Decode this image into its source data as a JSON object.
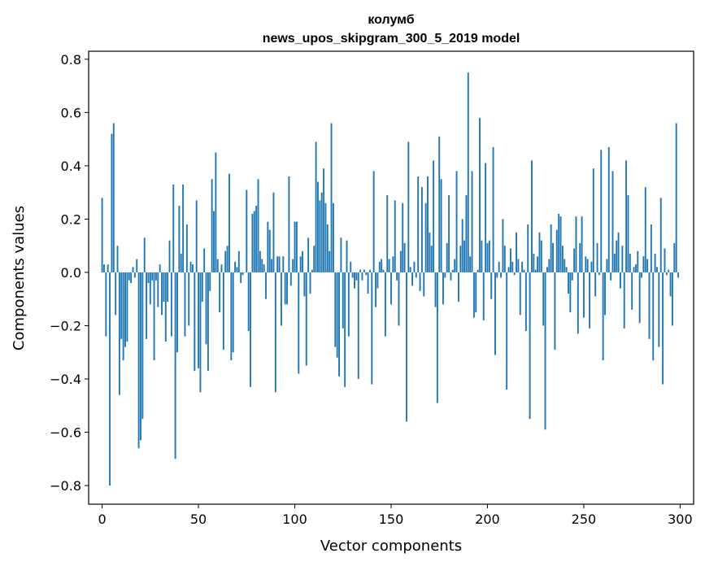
{
  "chart_data": {
    "type": "bar",
    "title_line1": "колумб",
    "title_line2": "news_upos_skipgram_300_5_2019 model",
    "xlabel": "Vector components",
    "ylabel": "Components values",
    "xlim": [
      -7,
      307
    ],
    "ylim": [
      -0.87,
      0.83
    ],
    "xticks": [
      0,
      50,
      100,
      150,
      200,
      250,
      300
    ],
    "xtick_labels": [
      "0",
      "50",
      "100",
      "150",
      "200",
      "250",
      "300"
    ],
    "yticks": [
      -0.8,
      -0.6,
      -0.4,
      -0.2,
      0.0,
      0.2,
      0.4,
      0.6,
      0.8
    ],
    "ytick_labels": [
      "−0.8",
      "−0.6",
      "−0.4",
      "−0.2",
      "0.0",
      "0.2",
      "0.4",
      "0.6",
      "0.8"
    ],
    "bar_color": "#1f77b4",
    "values": [
      0.28,
      0.03,
      -0.24,
      0.03,
      -0.8,
      0.52,
      0.56,
      -0.16,
      0.1,
      -0.46,
      -0.25,
      -0.33,
      -0.28,
      -0.26,
      -0.03,
      -0.04,
      0.02,
      -0.02,
      0.05,
      -0.66,
      -0.63,
      -0.55,
      0.13,
      -0.25,
      -0.04,
      -0.12,
      -0.03,
      -0.33,
      -0.03,
      -0.13,
      0.03,
      -0.16,
      -0.11,
      -0.26,
      -0.11,
      0.12,
      -0.24,
      0.33,
      -0.7,
      -0.3,
      0.25,
      0.07,
      0.33,
      -0.24,
      0.18,
      -0.2,
      0.04,
      0.03,
      -0.37,
      0.27,
      -0.36,
      -0.45,
      -0.11,
      0.09,
      -0.27,
      -0.37,
      -0.07,
      0.35,
      0.23,
      0.45,
      0.05,
      -0.15,
      0.03,
      -0.29,
      0.08,
      0.1,
      0.37,
      -0.33,
      -0.3,
      0.04,
      0.02,
      0.08,
      -0.04,
      -0.01,
      0.0,
      0.31,
      -0.22,
      -0.43,
      0.22,
      0.23,
      0.25,
      0.35,
      0.08,
      0.05,
      0.03,
      -0.1,
      0.19,
      0.16,
      0.05,
      0.3,
      -0.45,
      0.06,
      0.06,
      -0.2,
      0.06,
      -0.12,
      -0.12,
      0.36,
      -0.05,
      0.05,
      0.19,
      0.19,
      -0.38,
      0.06,
      0.08,
      -0.09,
      -0.35,
      0.13,
      -0.08,
      0.01,
      0.1,
      0.49,
      0.34,
      0.27,
      0.3,
      0.39,
      0.26,
      0.18,
      0.08,
      0.56,
      0.26,
      -0.28,
      -0.32,
      -0.39,
      0.13,
      -0.21,
      -0.43,
      0.12,
      -0.24,
      0.04,
      -0.02,
      -0.06,
      -0.03,
      -0.4,
      0.01,
      -0.03,
      0.01,
      -0.01,
      -0.08,
      0.01,
      -0.42,
      0.38,
      -0.13,
      -0.06,
      0.04,
      0.05,
      0.01,
      -0.24,
      0.29,
      0.05,
      -0.12,
      0.06,
      0.27,
      -0.03,
      -0.2,
      0.08,
      0.26,
      0.11,
      -0.56,
      0.49,
      0.02,
      -0.05,
      0.04,
      -0.02,
      0.36,
      -0.07,
      0.32,
      -0.09,
      0.26,
      0.36,
      0.15,
      0.1,
      0.42,
      -0.13,
      -0.49,
      0.51,
      0.35,
      -0.12,
      -0.02,
      0.11,
      0.29,
      -0.03,
      0.01,
      0.05,
      0.38,
      -0.11,
      0.1,
      0.2,
      0.12,
      0.29,
      0.75,
      0.06,
      0.38,
      -0.17,
      -0.15,
      0.01,
      0.58,
      0.12,
      -0.18,
      0.41,
      0.11,
      0.12,
      -0.1,
      0.47,
      -0.31,
      -0.02,
      0.04,
      -0.02,
      0.2,
      0.1,
      -0.44,
      0.02,
      0.09,
      0.04,
      -0.01,
      0.15,
      0.05,
      -0.16,
      0.04,
      0.01,
      -0.22,
      0.18,
      -0.55,
      0.42,
      0.07,
      0.01,
      0.06,
      0.15,
      0.12,
      -0.2,
      -0.59,
      0.02,
      0.05,
      0.18,
      0.11,
      -0.29,
      0.16,
      0.22,
      0.21,
      0.1,
      0.05,
      0.02,
      -0.08,
      -0.15,
      -0.03,
      0.09,
      0.21,
      -0.23,
      0.11,
      0.21,
      -0.17,
      0.06,
      0.05,
      -0.21,
      0.04,
      0.39,
      -0.09,
      0.11,
      -0.01,
      0.46,
      -0.33,
      -0.16,
      0.05,
      0.47,
      -0.03,
      0.38,
      0.07,
      0.12,
      0.15,
      -0.06,
      0.1,
      -0.21,
      0.42,
      0.29,
      0.07,
      -0.14,
      0.02,
      0.03,
      0.08,
      -0.19,
      -0.02,
      0.06,
      0.32,
      0.05,
      -0.25,
      0.18,
      -0.33,
      0.07,
      0.02,
      -0.28,
      0.28,
      -0.42,
      0.09,
      -0.01,
      0.01,
      -0.09,
      -0.2,
      0.11,
      0.56,
      -0.02
    ]
  }
}
